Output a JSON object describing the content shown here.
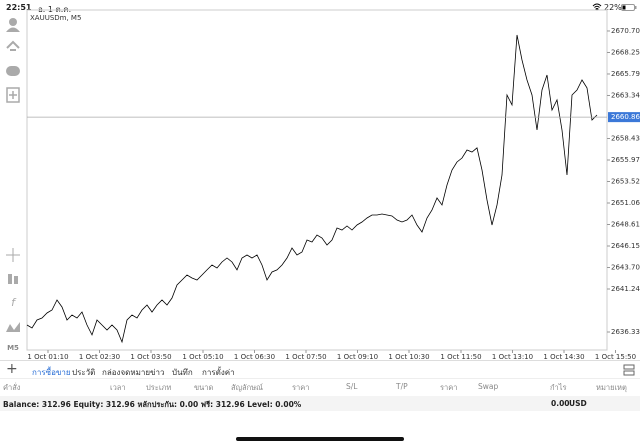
{
  "status_bar": {
    "time": "22:51",
    "date": "อ. 1 ต.ค.",
    "battery": "22%"
  },
  "toolbar": {
    "timeframe": "M5"
  },
  "chart_data": {
    "type": "line",
    "title": "XAUUSDm, M5",
    "color": "#000000",
    "values": [
      2637.13,
      2636.79,
      2637.7,
      2637.93,
      2638.5,
      2638.85,
      2639.99,
      2639.19,
      2637.7,
      2638.28,
      2637.93,
      2638.62,
      2637.13,
      2636.0,
      2637.7,
      2637.13,
      2636.56,
      2637.13,
      2636.56,
      2635.19,
      2637.7,
      2638.28,
      2637.93,
      2638.85,
      2639.42,
      2638.62,
      2639.42,
      2639.99,
      2639.42,
      2640.22,
      2641.7,
      2642.27,
      2642.84,
      2642.5,
      2642.27,
      2642.84,
      2643.42,
      2643.98,
      2643.64,
      2644.33,
      2644.78,
      2644.33,
      2643.42,
      2644.78,
      2645.13,
      2644.78,
      2645.13,
      2643.98,
      2642.27,
      2643.19,
      2643.42,
      2643.98,
      2644.78,
      2645.93,
      2645.13,
      2645.47,
      2646.84,
      2646.61,
      2647.41,
      2647.07,
      2646.27,
      2646.84,
      2648.21,
      2647.98,
      2648.44,
      2647.98,
      2648.55,
      2648.9,
      2649.35,
      2649.69,
      2649.69,
      2649.81,
      2649.69,
      2649.58,
      2649.12,
      2648.9,
      2649.12,
      2649.69,
      2648.55,
      2647.75,
      2649.35,
      2650.27,
      2651.64,
      2650.84,
      2653.12,
      2654.83,
      2655.75,
      2656.2,
      2657.12,
      2656.89,
      2657.35,
      2654.83,
      2651.41,
      2648.55,
      2650.84,
      2654.26,
      2663.4,
      2662.26,
      2670.25,
      2667.39,
      2665.11,
      2663.4,
      2659.4,
      2663.97,
      2665.68,
      2661.68,
      2662.83,
      2659.4,
      2654.26,
      2663.4,
      2663.97,
      2665.11,
      2664.2,
      2660.54,
      2661.11
    ],
    "xlim": [
      0,
      116
    ],
    "xticks": [
      {
        "value": 4.2,
        "label": "1 Oct 01:10"
      },
      {
        "value": 14.5,
        "label": "1 Oct 02:30"
      },
      {
        "value": 24.8,
        "label": "1 Oct 03:50"
      },
      {
        "value": 35.2,
        "label": "1 Oct 05:10"
      },
      {
        "value": 45.5,
        "label": "1 Oct 06:30"
      },
      {
        "value": 55.8,
        "label": "1 Oct 07:50"
      },
      {
        "value": 66.1,
        "label": "1 Oct 09:10"
      },
      {
        "value": 76.4,
        "label": "1 Oct 10:30"
      },
      {
        "value": 86.8,
        "label": "1 Oct 11:50"
      },
      {
        "value": 97.1,
        "label": "1 Oct 13:10"
      },
      {
        "value": 107.4,
        "label": "1 Oct 14:30"
      },
      {
        "value": 117.7,
        "label": "1 Oct 15:50"
      }
    ],
    "ylim": [
      2634.28,
      2673.1
    ],
    "yticks": [
      2670.705,
      {
        "value": 2668.25,
        "label": "2668.250"
      },
      2665.795,
      {
        "value": 2663.34,
        "label": "2663.340"
      },
      {
        "value": 2658.43,
        "label": "2658.430"
      },
      2655.975,
      {
        "value": 2653.52,
        "label": "2653.520"
      },
      2651.065,
      {
        "value": 2648.61,
        "label": "2648.610"
      },
      2646.155,
      {
        "value": 2643.7,
        "label": "2643.700"
      },
      2641.245,
      2636.335
    ],
    "current_price": 2660.869,
    "current_price_color": "#3b78d8"
  },
  "tabs": [
    "การซื้อขาย",
    "ประวัติ",
    "กล่องจดหมาย",
    "ข่าว",
    "บันทึก",
    "การตั้งค่า"
  ],
  "columns": [
    "คำสั่ง",
    "เวลา",
    "ประเภท",
    "ขนาด",
    "สัญลักษณ์",
    "ราคา",
    "S/L",
    "T/P",
    "ราคา",
    "Swap",
    "กำไร",
    "หมายเหตุ"
  ],
  "account": {
    "summary": "Balance: 312.96 Equity: 312.96 หลักประกัน: 0.00 ฟรี: 312.96 Level: 0.00%",
    "profit": "0.00",
    "currency": "USD"
  }
}
